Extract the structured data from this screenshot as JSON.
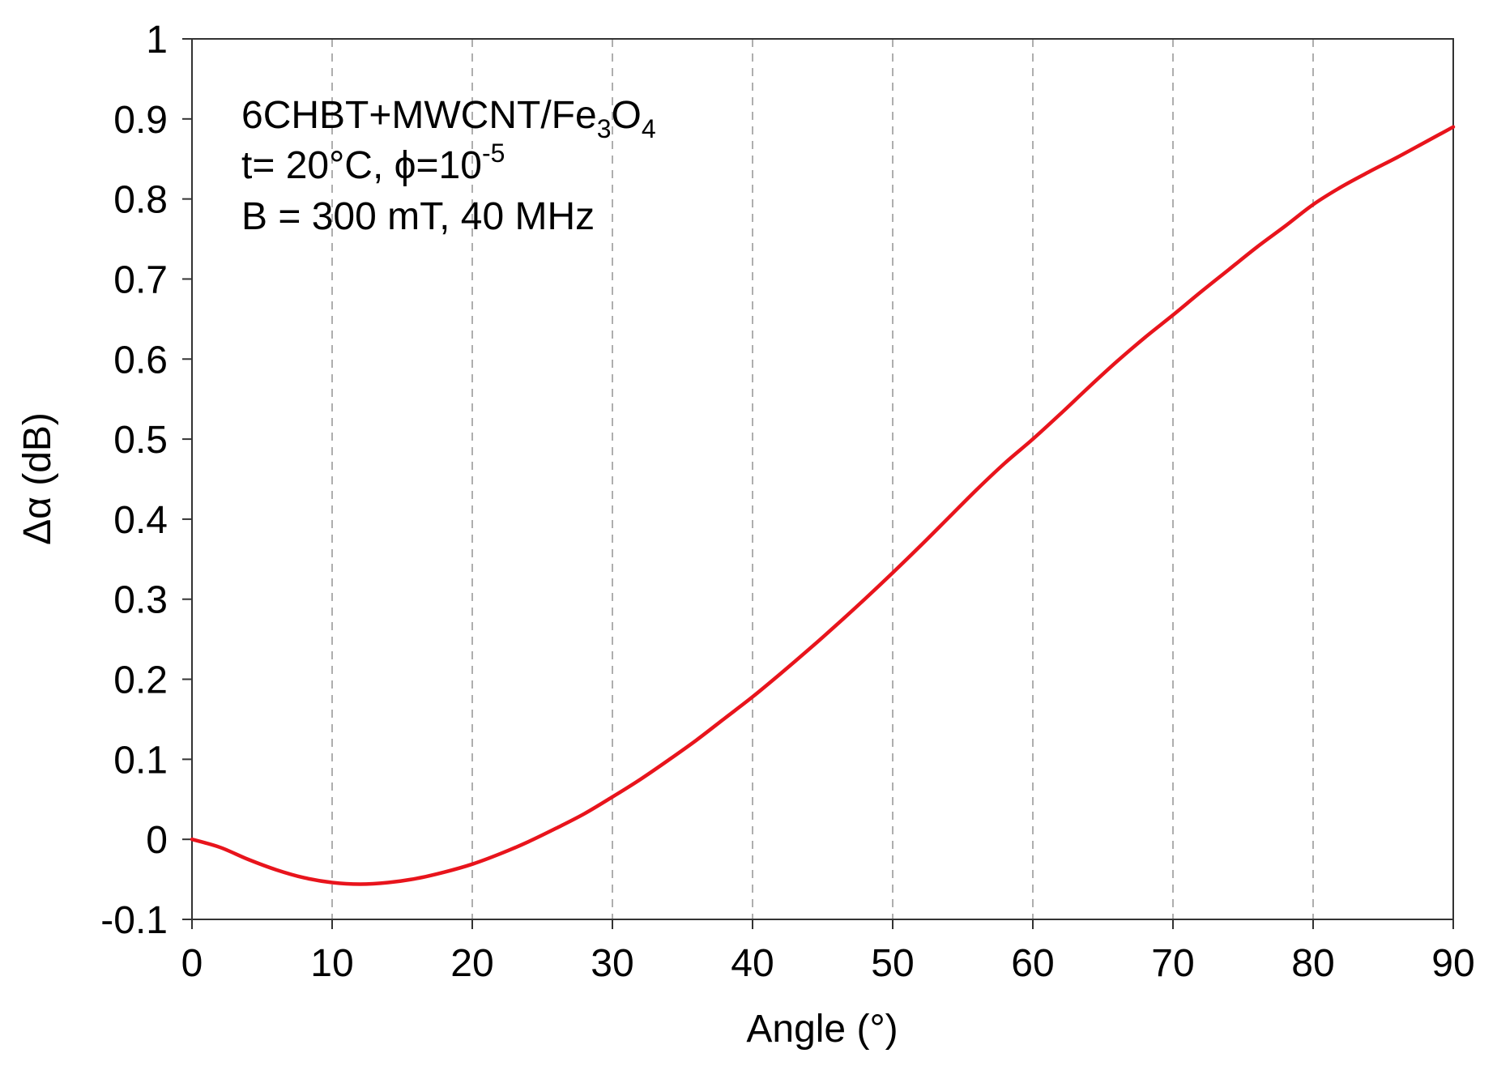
{
  "chart_data": {
    "type": "line",
    "title": "",
    "xlabel": "Angle (°)",
    "ylabel": "Δα (dB)",
    "xlim": [
      0,
      90
    ],
    "ylim": [
      -0.1,
      1
    ],
    "x_ticks": [
      0,
      10,
      20,
      30,
      40,
      50,
      60,
      70,
      80,
      90
    ],
    "x_tick_labels": [
      "0",
      "10",
      "20",
      "30",
      "40",
      "50",
      "60",
      "70",
      "80",
      "90"
    ],
    "y_ticks": [
      -0.1,
      0,
      0.1,
      0.2,
      0.3,
      0.4,
      0.5,
      0.6,
      0.7,
      0.8,
      0.9,
      1
    ],
    "y_tick_labels": [
      "-0.1",
      "0",
      "0.1",
      "0.2",
      "0.3",
      "0.4",
      "0.5",
      "0.6",
      "0.7",
      "0.8",
      "0.9",
      "1"
    ],
    "grid": "vertical dashed",
    "series": [
      {
        "name": "6CHBT+MWCNT/Fe3O4",
        "color": "#e8141c",
        "x": [
          0,
          2,
          4,
          6,
          8,
          10,
          12,
          14,
          16,
          18,
          20,
          22,
          24,
          26,
          28,
          30,
          32,
          34,
          36,
          38,
          40,
          42,
          44,
          46,
          48,
          50,
          52,
          54,
          56,
          58,
          60,
          62,
          64,
          66,
          68,
          70,
          72,
          74,
          76,
          78,
          80,
          82,
          84,
          86,
          88,
          90
        ],
        "y": [
          0.0,
          -0.01,
          -0.025,
          -0.038,
          -0.048,
          -0.054,
          -0.056,
          -0.054,
          -0.049,
          -0.041,
          -0.031,
          -0.018,
          -0.003,
          0.014,
          0.032,
          0.053,
          0.075,
          0.099,
          0.124,
          0.151,
          0.178,
          0.207,
          0.237,
          0.268,
          0.3,
          0.333,
          0.367,
          0.402,
          0.437,
          0.47,
          0.5,
          0.532,
          0.565,
          0.597,
          0.627,
          0.655,
          0.684,
          0.712,
          0.74,
          0.766,
          0.793,
          0.815,
          0.834,
          0.852,
          0.871,
          0.89
        ]
      }
    ],
    "annotations": {
      "line1_main": "6CHBT+MWCNT/Fe",
      "line1_sub1": "3",
      "line1_mid": "O",
      "line1_sub2": "4",
      "line2_main": "t= 20°C, ϕ=10",
      "line2_sup": "-5",
      "line3": "B = 300 mT, 40 MHz"
    }
  }
}
